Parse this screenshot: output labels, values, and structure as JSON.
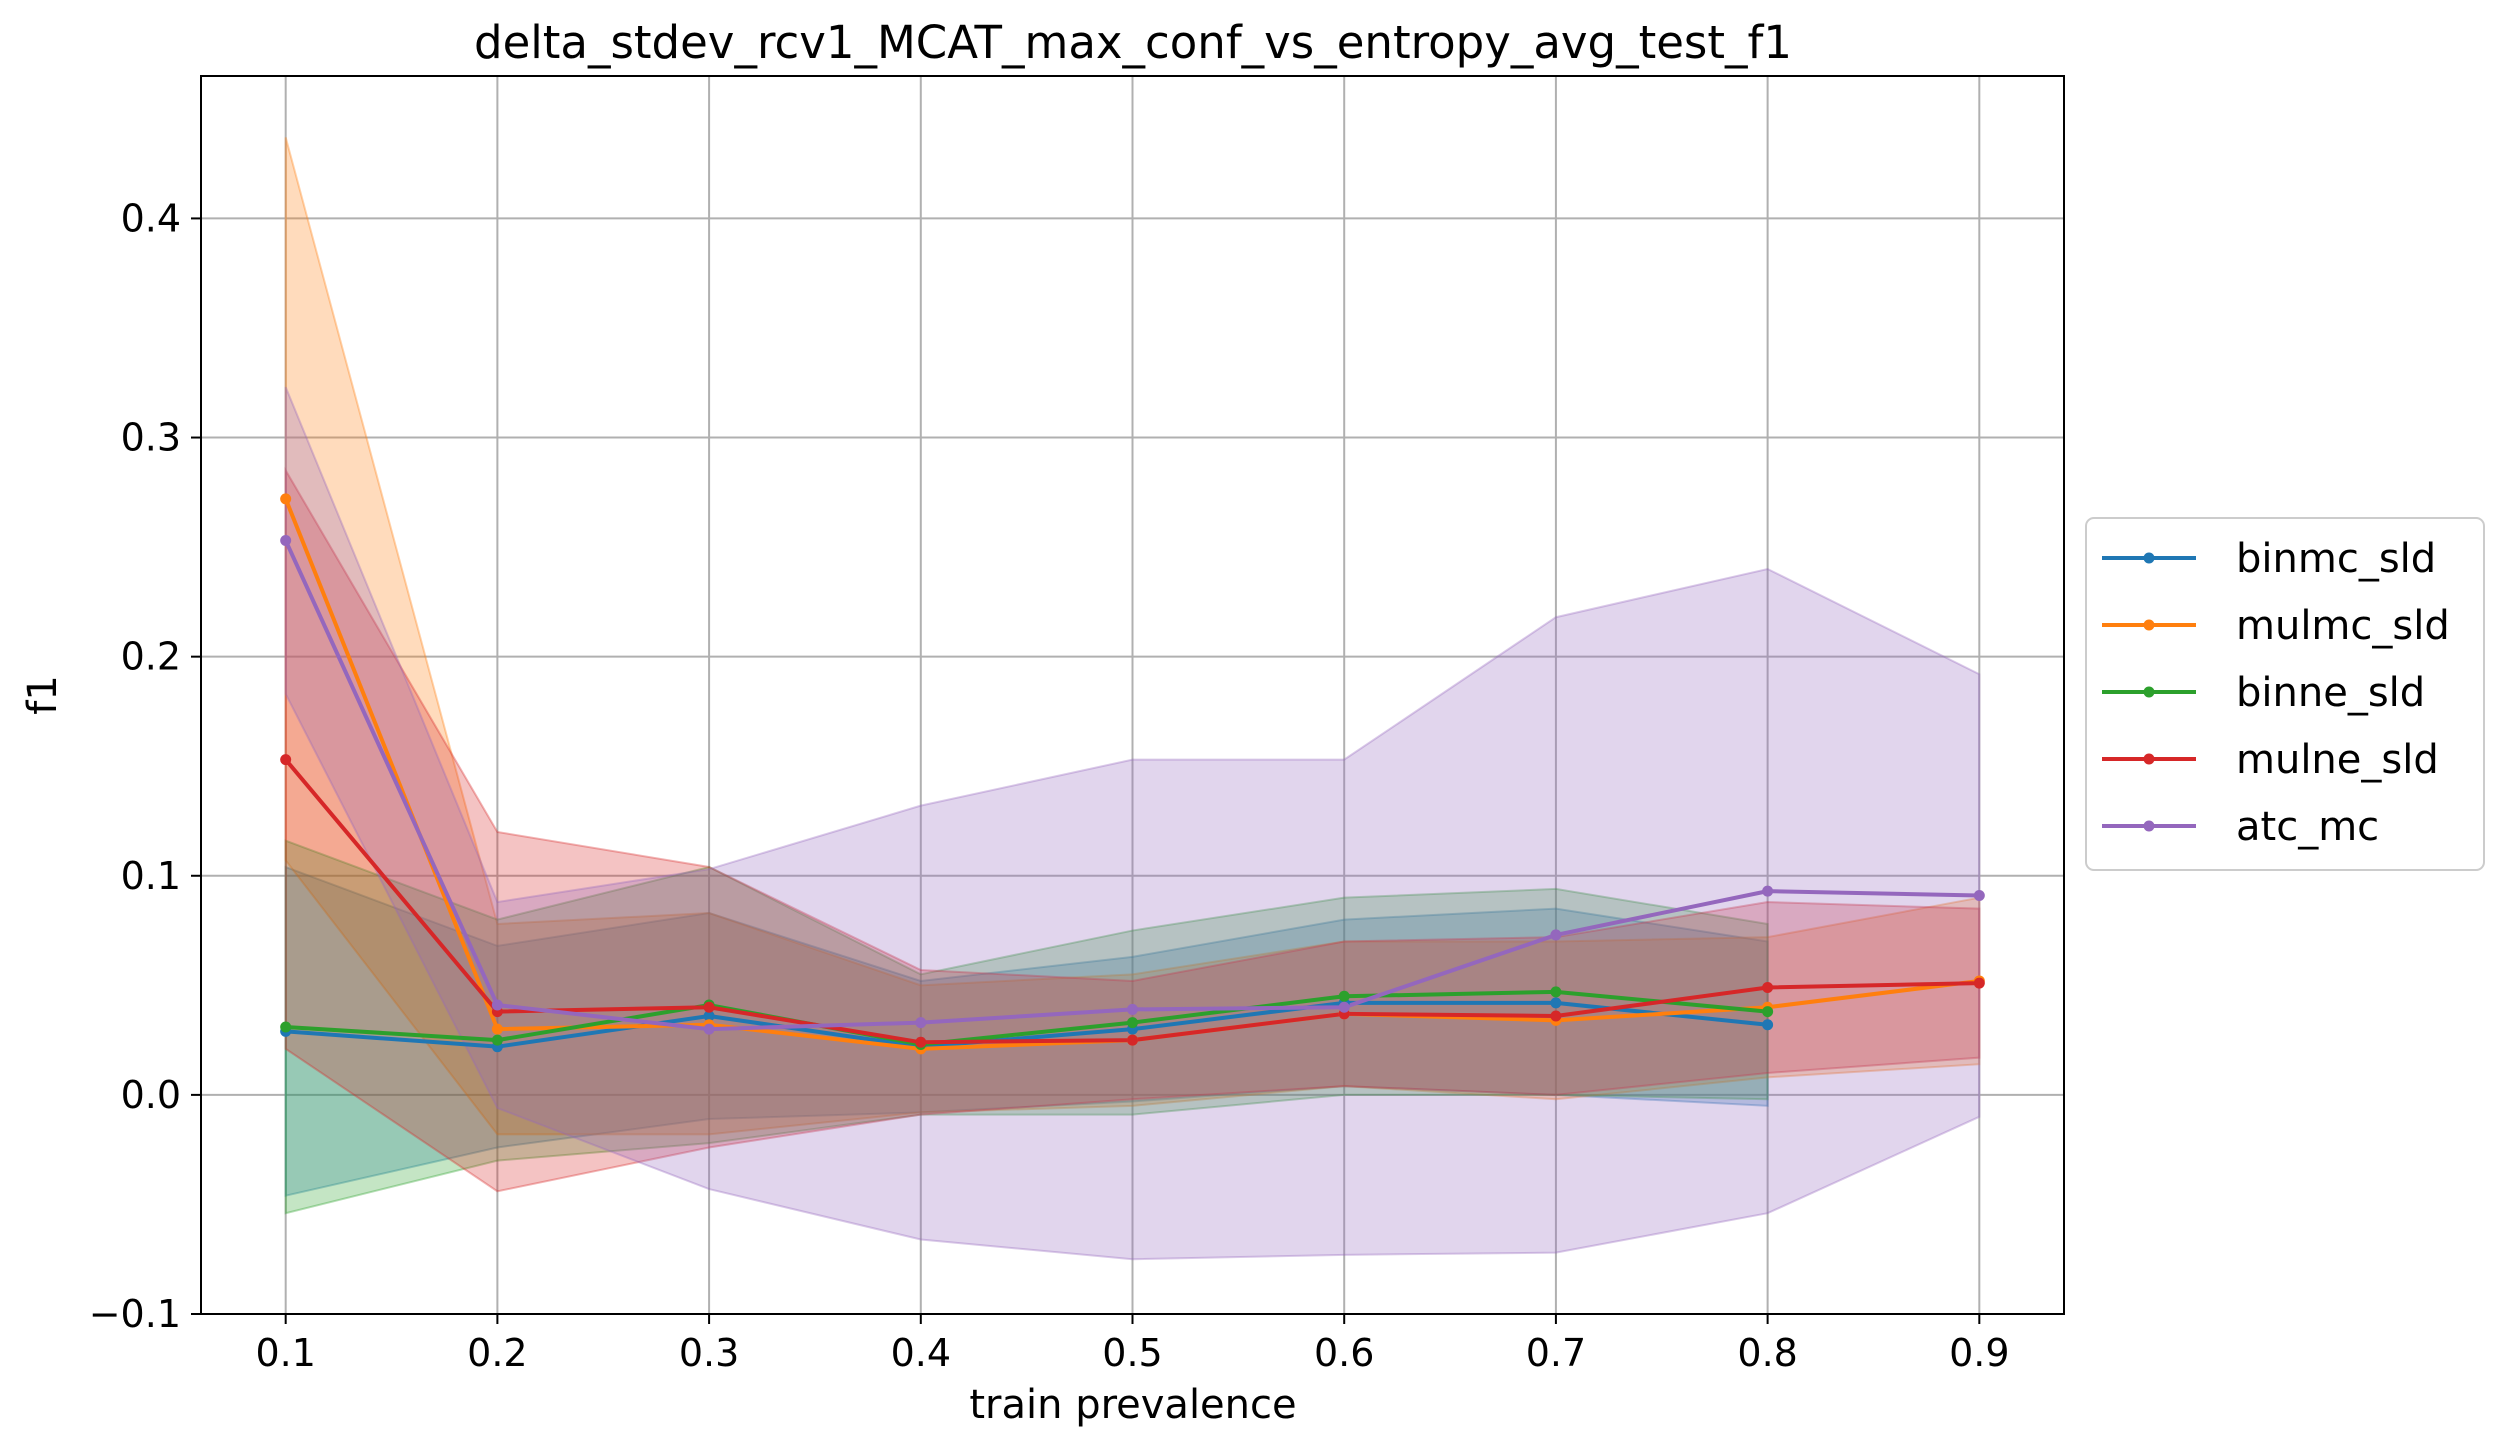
{
  "chart_data": {
    "type": "line",
    "title": "delta_stdev_rcv1_MCAT_max_conf_vs_entropy_avg_test_f1",
    "xlabel": "train prevalence",
    "ylabel": "f1",
    "xlim": [
      0.06,
      0.94
    ],
    "ylim": [
      -0.1,
      0.465
    ],
    "xticks": [
      0.1,
      0.2,
      0.3,
      0.4,
      0.5,
      0.6,
      0.7,
      0.8,
      0.9
    ],
    "xtick_labels": [
      "0.1",
      "0.2",
      "0.3",
      "0.4",
      "0.5",
      "0.6",
      "0.7",
      "0.8",
      "0.9"
    ],
    "yticks": [
      -0.1,
      0.0,
      0.1,
      0.2,
      0.3,
      0.4
    ],
    "ytick_labels": [
      "−0.1",
      "0.0",
      "0.1",
      "0.2",
      "0.3",
      "0.4"
    ],
    "grid": true,
    "legend_position": "outside-right",
    "series": [
      {
        "name": "binmc_sld",
        "color": "#1f77b4",
        "x": [
          0.1,
          0.2,
          0.3,
          0.4,
          0.5,
          0.6,
          0.7,
          0.8
        ],
        "values": [
          0.029,
          0.022,
          0.036,
          0.022,
          0.03,
          0.042,
          0.042,
          0.032
        ],
        "band_upper": [
          0.104,
          0.068,
          0.083,
          0.052,
          0.063,
          0.08,
          0.085,
          0.07
        ],
        "band_lower": [
          -0.046,
          -0.024,
          -0.011,
          -0.008,
          -0.003,
          0.004,
          0.0,
          -0.005
        ]
      },
      {
        "name": "mulmc_sld",
        "color": "#ff7f0e",
        "x": [
          0.1,
          0.2,
          0.3,
          0.4,
          0.5,
          0.6,
          0.7,
          0.8,
          0.9
        ],
        "values": [
          0.272,
          0.03,
          0.032,
          0.021,
          0.025,
          0.037,
          0.034,
          0.04,
          0.052
        ],
        "band_upper": [
          0.437,
          0.078,
          0.083,
          0.05,
          0.055,
          0.07,
          0.07,
          0.072,
          0.09
        ],
        "band_lower": [
          0.107,
          -0.018,
          -0.018,
          -0.008,
          -0.005,
          0.004,
          -0.002,
          0.008,
          0.014
        ]
      },
      {
        "name": "binne_sld",
        "color": "#2ca02c",
        "x": [
          0.1,
          0.2,
          0.3,
          0.4,
          0.5,
          0.6,
          0.7,
          0.8
        ],
        "values": [
          0.031,
          0.025,
          0.041,
          0.023,
          0.033,
          0.045,
          0.047,
          0.038
        ],
        "band_upper": [
          0.116,
          0.08,
          0.104,
          0.055,
          0.075,
          0.09,
          0.094,
          0.078
        ],
        "band_lower": [
          -0.054,
          -0.03,
          -0.022,
          -0.009,
          -0.009,
          0.0,
          0.0,
          -0.002
        ]
      },
      {
        "name": "mulne_sld",
        "color": "#d62728",
        "x": [
          0.1,
          0.2,
          0.3,
          0.4,
          0.5,
          0.6,
          0.7,
          0.8,
          0.9
        ],
        "values": [
          0.153,
          0.038,
          0.04,
          0.024,
          0.025,
          0.037,
          0.036,
          0.049,
          0.051
        ],
        "band_upper": [
          0.285,
          0.12,
          0.104,
          0.057,
          0.052,
          0.07,
          0.072,
          0.088,
          0.085
        ],
        "band_lower": [
          0.021,
          -0.044,
          -0.024,
          -0.009,
          -0.002,
          0.004,
          0.0,
          0.01,
          0.017
        ]
      },
      {
        "name": "atc_mc",
        "color": "#9467bd",
        "x": [
          0.1,
          0.2,
          0.3,
          0.4,
          0.5,
          0.6,
          0.7,
          0.8,
          0.9
        ],
        "values": [
          0.253,
          0.041,
          0.03,
          0.033,
          0.039,
          0.04,
          0.073,
          0.093,
          0.091
        ],
        "band_upper": [
          0.323,
          0.088,
          0.103,
          0.132,
          0.153,
          0.153,
          0.218,
          0.24,
          0.192
        ],
        "band_lower": [
          0.183,
          -0.006,
          -0.043,
          -0.066,
          -0.075,
          -0.073,
          -0.072,
          -0.054,
          -0.01
        ]
      }
    ]
  }
}
